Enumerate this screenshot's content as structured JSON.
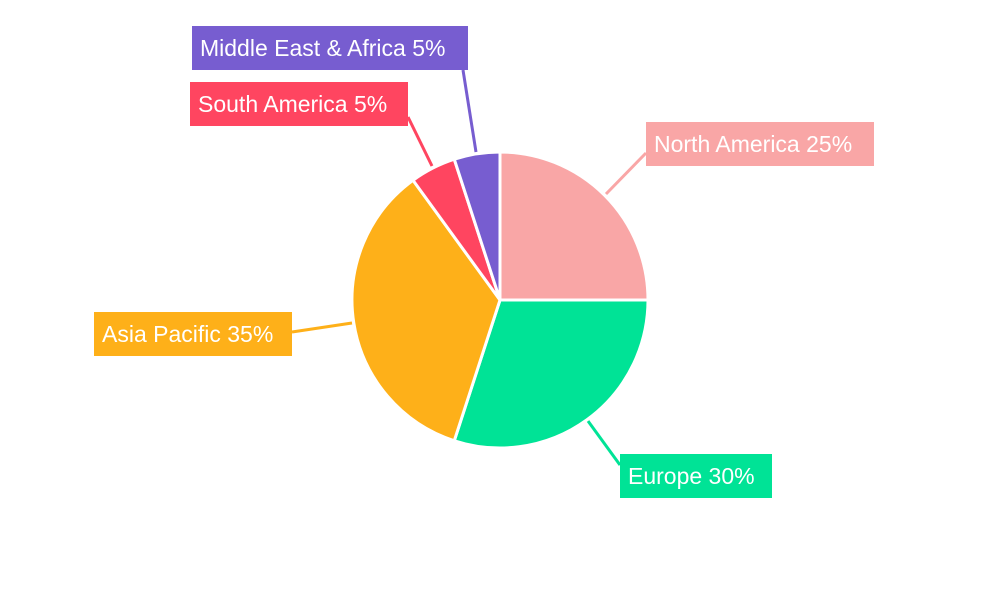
{
  "chart_data": {
    "type": "pie",
    "title": "",
    "legend": "none",
    "start_angle": "top, clockwise",
    "slices": [
      {
        "label": "North America",
        "value": 25,
        "text": "North America 25%",
        "color": "#F9A6A6"
      },
      {
        "label": "Europe",
        "value": 30,
        "text": "Europe 30%",
        "color": "#00E396"
      },
      {
        "label": "Asia Pacific",
        "value": 35,
        "text": "Asia Pacific 35%",
        "color": "#FEB019"
      },
      {
        "label": "South America",
        "value": 5,
        "text": "South America 5%",
        "color": "#FF4560"
      },
      {
        "label": "Middle East & Africa",
        "value": 5,
        "text": "Middle East & Africa 5%",
        "color": "#775DD0"
      }
    ]
  }
}
